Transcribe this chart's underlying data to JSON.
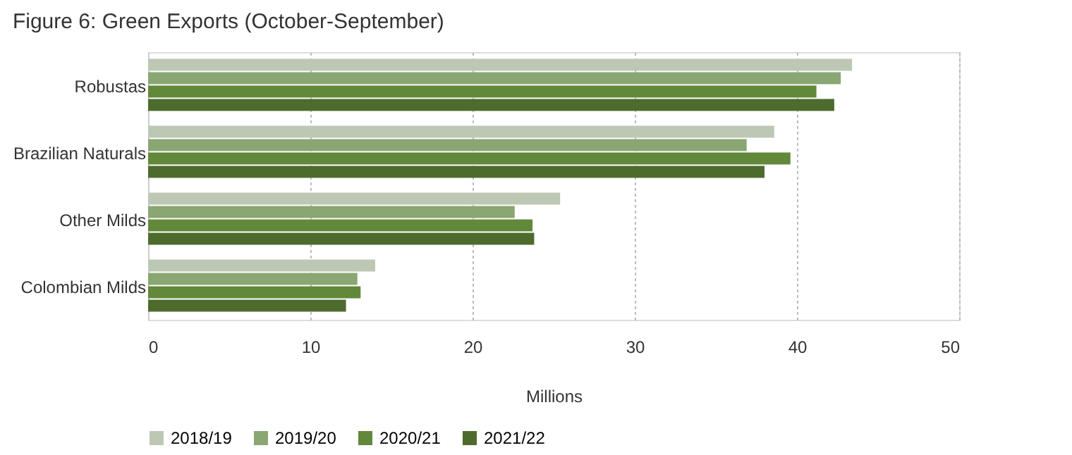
{
  "chart_data": {
    "type": "bar",
    "orientation": "horizontal",
    "title": "Figure 6: Green Exports (October-September)",
    "xlabel": "Millions",
    "categories": [
      "Robustas",
      "Brazilian Naturals",
      "Other Milds",
      "Colombian Milds"
    ],
    "series": [
      {
        "name": "2018/19",
        "color": "#bcc8b4",
        "values": [
          43.4,
          38.6,
          25.4,
          14.0
        ]
      },
      {
        "name": "2019/20",
        "color": "#8aa672",
        "values": [
          42.7,
          36.9,
          22.6,
          12.9
        ]
      },
      {
        "name": "2020/21",
        "color": "#62883a",
        "values": [
          41.2,
          39.6,
          23.7,
          13.1
        ]
      },
      {
        "name": "2021/22",
        "color": "#4e6b2e",
        "values": [
          42.3,
          38.0,
          23.8,
          12.2
        ]
      }
    ],
    "xlim": [
      0,
      50
    ],
    "xticks": [
      0,
      10,
      20,
      30,
      40,
      50
    ],
    "grid": "x",
    "legend": "bottom"
  }
}
